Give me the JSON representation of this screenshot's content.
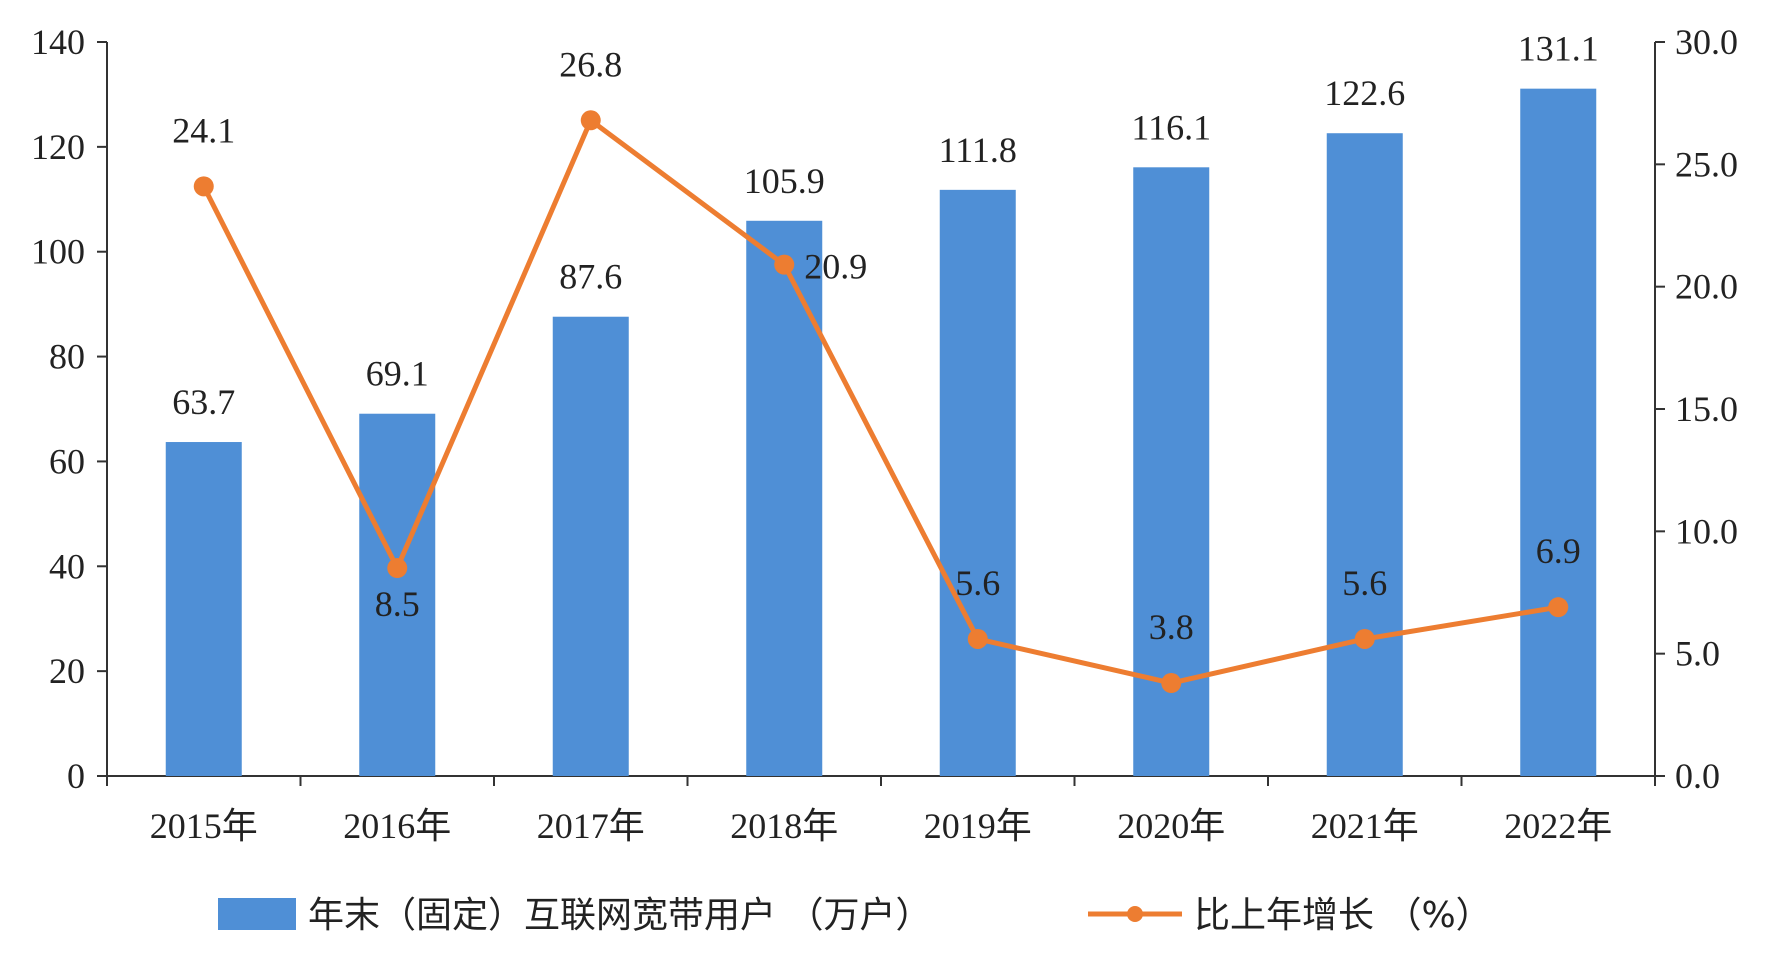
{
  "chart_data": {
    "type": "bar",
    "categories": [
      "2015年",
      "2016年",
      "2017年",
      "2018年",
      "2019年",
      "2020年",
      "2021年",
      "2022年"
    ],
    "series": [
      {
        "name": "年末（固定）互联网宽带用户 （万户）",
        "type": "bar",
        "axis": "left",
        "color": "#4f8fd6",
        "values": [
          63.7,
          69.1,
          87.6,
          105.9,
          111.8,
          116.1,
          122.6,
          131.1
        ],
        "labels": [
          "63.7",
          "69.1",
          "87.6",
          "105.9",
          "111.8",
          "116.1",
          "122.6",
          "131.1"
        ]
      },
      {
        "name": "比上年增长 （%）",
        "type": "line",
        "axis": "right",
        "color": "#ed7d31",
        "values": [
          24.1,
          8.5,
          26.8,
          20.9,
          5.6,
          3.8,
          5.6,
          6.9
        ],
        "labels": [
          "24.1",
          "8.5",
          "26.8",
          "20.9",
          "5.6",
          "3.8",
          "5.6",
          "6.9"
        ]
      }
    ],
    "y_left": {
      "ylim": [
        0,
        140
      ],
      "ticks": [
        "0",
        "20",
        "40",
        "60",
        "80",
        "100",
        "120",
        "140"
      ]
    },
    "y_right": {
      "ylim": [
        0,
        30
      ],
      "ticks": [
        "0.0",
        "5.0",
        "10.0",
        "15.0",
        "20.0",
        "25.0",
        "30.0"
      ]
    },
    "grid": false,
    "legend": "bottom"
  }
}
